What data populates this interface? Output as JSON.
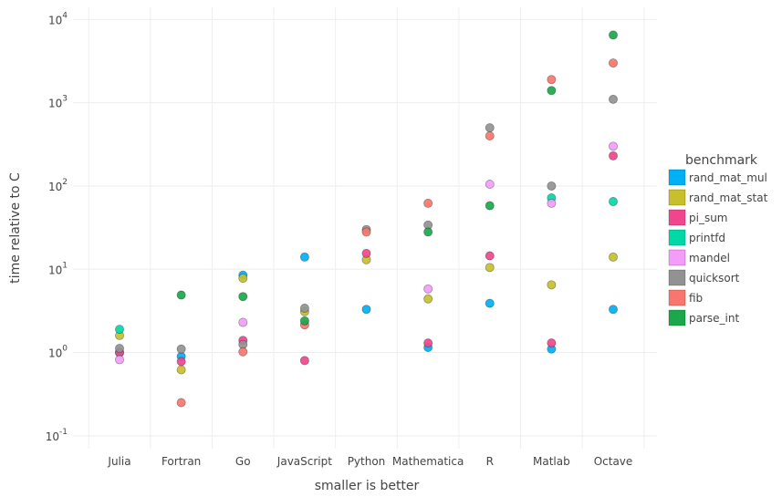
{
  "chart_data": {
    "type": "scatter",
    "title": "",
    "xlabel": "smaller is better",
    "ylabel": "time relative to C",
    "yscale": "log",
    "ylim": [
      0.07,
      14000
    ],
    "yticks": [
      {
        "value": 0.1,
        "base": "10",
        "exp": "-1"
      },
      {
        "value": 1,
        "base": "10",
        "exp": "0"
      },
      {
        "value": 10,
        "base": "10",
        "exp": "1"
      },
      {
        "value": 100,
        "base": "10",
        "exp": "2"
      },
      {
        "value": 1000,
        "base": "10",
        "exp": "3"
      },
      {
        "value": 10000,
        "base": "10",
        "exp": "4"
      }
    ],
    "categories": [
      "Julia",
      "Fortran",
      "Go",
      "JavaScript",
      "Python",
      "Mathematica",
      "R",
      "Matlab",
      "Octave"
    ],
    "grid": true,
    "legend": {
      "title": "benchmark",
      "position": "right"
    },
    "series": [
      {
        "name": "rand_mat_mul",
        "color": "#00b0f6",
        "values": [
          1.0,
          0.9,
          8.5,
          14.0,
          3.3,
          1.15,
          3.9,
          1.1,
          3.3
        ]
      },
      {
        "name": "rand_mat_stat",
        "color": "#c7c02c",
        "values": [
          1.6,
          0.62,
          7.8,
          3.1,
          13.0,
          4.4,
          10.5,
          6.5,
          14.0
        ]
      },
      {
        "name": "pi_sum",
        "color": "#f0478c",
        "values": [
          1.0,
          0.78,
          1.4,
          0.8,
          15.5,
          1.3,
          14.5,
          1.3,
          230
        ]
      },
      {
        "name": "printfd",
        "color": "#00d9a7",
        "values": [
          1.9,
          null,
          null,
          null,
          null,
          null,
          null,
          72,
          65
        ]
      },
      {
        "name": "mandel",
        "color": "#f39cfa",
        "values": [
          0.82,
          null,
          2.3,
          null,
          null,
          5.8,
          105,
          62,
          300
        ]
      },
      {
        "name": "quicksort",
        "color": "#929292",
        "values": [
          1.12,
          1.1,
          1.25,
          3.4,
          30.0,
          34.0,
          500,
          100,
          1100
        ]
      },
      {
        "name": "fib",
        "color": "#f8766d",
        "values": [
          null,
          0.25,
          1.02,
          2.15,
          28.0,
          62.0,
          400,
          1900,
          3000
        ]
      },
      {
        "name": "parse_int",
        "color": "#1aa84a",
        "values": [
          null,
          4.9,
          4.7,
          2.4,
          null,
          28.0,
          58.0,
          1400,
          6500
        ]
      }
    ]
  }
}
